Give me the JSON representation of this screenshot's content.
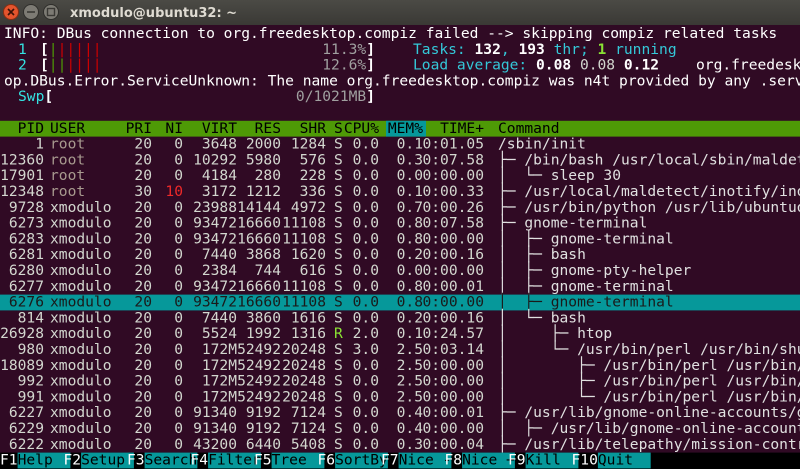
{
  "window": {
    "title": "xmodulo@ubuntu32: ~"
  },
  "top_lines": [
    [
      [
        {
          "text": "INFO: DBus connection to org.freedesktop.compiz failed --> skipping compiz related tasks",
          "color": "#ffffff"
        }
      ]
    ],
    [
      [
        {
          "text": "1",
          "color": "#34e2e2"
        }
      ],
      [
        {
          "text": "[",
          "color": "#ffffff",
          "bold": true
        },
        {
          "text": "|",
          "color": "#4e9a06"
        },
        {
          "text": "|||||",
          "color": "#cc0000"
        }
      ],
      [
        {
          "text": "11.3%",
          "color": "#a0a0a0"
        },
        {
          "text": "]",
          "color": "#ffffff",
          "bold": true
        }
      ],
      [
        {
          "text": "Tasks: ",
          "color": "#34c8d8"
        },
        {
          "text": "132",
          "color": "#ffffff",
          "bold": true
        },
        {
          "text": ", ",
          "color": "#34c8d8"
        },
        {
          "text": "193",
          "color": "#ffffff",
          "bold": true
        },
        {
          "text": " thr; ",
          "color": "#34c8d8"
        },
        {
          "text": "1",
          "color": "#8ae234",
          "bold": true
        },
        {
          "text": " running",
          "color": "#34c8d8"
        }
      ]
    ],
    [
      [
        {
          "text": "2",
          "color": "#34e2e2"
        }
      ],
      [
        {
          "text": "[",
          "color": "#ffffff",
          "bold": true
        },
        {
          "text": "||",
          "color": "#4e9a06"
        },
        {
          "text": "||||",
          "color": "#cc0000"
        }
      ],
      [
        {
          "text": "12.6%",
          "color": "#a0a0a0"
        },
        {
          "text": "]",
          "color": "#ffffff",
          "bold": true
        }
      ],
      [
        {
          "text": "Load average: ",
          "color": "#34c8d8"
        },
        {
          "text": "0.08 ",
          "color": "#ffffff",
          "bold": true
        },
        {
          "text": "0.08 ",
          "color": "#d3d7cf"
        },
        {
          "text": "0.12",
          "color": "#ffffff",
          "bold": true
        }
      ],
      [
        {
          "text": "org.freedesktop",
          "color": "#ffffff"
        }
      ]
    ],
    [
      [
        {
          "text": "op.DBus.Error.ServiceUnknown: The name org.freedesktop.compiz was n4t provided by any .service files",
          "color": "#ffffff"
        }
      ]
    ],
    [
      [
        {
          "text": "Swp",
          "color": "#34e2e2"
        },
        {
          "text": "[",
          "color": "#ffffff",
          "bold": true
        }
      ],
      [
        {
          "text": "0/1021MB",
          "color": "#a0a0a0"
        },
        {
          "text": "]",
          "color": "#ffffff",
          "bold": true
        }
      ]
    ]
  ],
  "table": {
    "header": [
      "PID",
      "USER",
      "PRI",
      "NI",
      "VIRT",
      "RES",
      "SHR",
      "S",
      "CPU%",
      "MEM%",
      "TIME+",
      "Command"
    ],
    "sort_column": 9,
    "highlight_row": 10,
    "rows": [
      [
        "1",
        "root",
        "20",
        "0",
        "3648",
        "2000",
        "1284",
        "S",
        "0.0",
        "0.1",
        "0:01.05",
        "/sbin/init"
      ],
      [
        "12360",
        "root",
        "20",
        "0",
        "10292",
        "5980",
        "576",
        "S",
        "0.0",
        "0.3",
        "0:07.58",
        "├─ /bin/bash /usr/local/sbin/maldet -m"
      ],
      [
        "17901",
        "root",
        "20",
        "0",
        "4184",
        "280",
        "228",
        "S",
        "0.0",
        "0.0",
        "0:00.00",
        "│  └─ sleep 30"
      ],
      [
        "12348",
        "root",
        "30",
        "10",
        "3172",
        "1212",
        "336",
        "S",
        "0.0",
        "0.1",
        "0:00.33",
        "├─ /usr/local/maldetect/inotify/inotif"
      ],
      [
        "9728",
        "xmodulo",
        "20",
        "0",
        "23988",
        "14144",
        "4972",
        "S",
        "0.0",
        "0.7",
        "0:00.26",
        "├─ /usr/bin/python /usr/lib/ubuntuone-"
      ],
      [
        "6273",
        "xmodulo",
        "20",
        "0",
        "93472",
        "16660",
        "11108",
        "S",
        "0.0",
        "0.8",
        "0:07.58",
        "├─ gnome-terminal"
      ],
      [
        "6283",
        "xmodulo",
        "20",
        "0",
        "93472",
        "16660",
        "11108",
        "S",
        "0.0",
        "0.8",
        "0:00.00",
        "│  ├─ gnome-terminal"
      ],
      [
        "6281",
        "xmodulo",
        "20",
        "0",
        "7440",
        "3868",
        "1620",
        "S",
        "0.0",
        "0.2",
        "0:00.16",
        "│  ├─ bash"
      ],
      [
        "6280",
        "xmodulo",
        "20",
        "0",
        "2384",
        "744",
        "616",
        "S",
        "0.0",
        "0.0",
        "0:00.00",
        "│  ├─ gnome-pty-helper"
      ],
      [
        "6277",
        "xmodulo",
        "20",
        "0",
        "93472",
        "16660",
        "11108",
        "S",
        "0.0",
        "0.8",
        "0:00.01",
        "│  ├─ gnome-terminal"
      ],
      [
        "6276",
        "xmodulo",
        "20",
        "0",
        "93472",
        "16660",
        "11108",
        "S",
        "0.0",
        "0.8",
        "0:00.00",
        "│  ├─ gnome-terminal"
      ],
      [
        "814",
        "xmodulo",
        "20",
        "0",
        "7440",
        "3860",
        "1616",
        "S",
        "0.0",
        "0.2",
        "0:00.16",
        "│  └─ bash"
      ],
      [
        "26928",
        "xmodulo",
        "20",
        "0",
        "5524",
        "1992",
        "1316",
        "R",
        "2.0",
        "0.1",
        "0:24.57",
        "│     ├─ htop"
      ],
      [
        "980",
        "xmodulo",
        "20",
        "0",
        "172M",
        "52492",
        "20248",
        "S",
        "3.0",
        "2.5",
        "0:03.14",
        "│     └─ /usr/bin/perl /usr/bin/shutte"
      ],
      [
        "18089",
        "xmodulo",
        "20",
        "0",
        "172M",
        "52492",
        "20248",
        "S",
        "0.0",
        "2.5",
        "0:00.00",
        "│        ├─ /usr/bin/perl /usr/bin/shu"
      ],
      [
        "992",
        "xmodulo",
        "20",
        "0",
        "172M",
        "52492",
        "20248",
        "S",
        "0.0",
        "2.5",
        "0:00.00",
        "│        ├─ /usr/bin/perl /usr/bin/shu"
      ],
      [
        "991",
        "xmodulo",
        "20",
        "0",
        "172M",
        "52492",
        "20248",
        "S",
        "0.0",
        "2.5",
        "0:00.00",
        "│        └─ /usr/bin/perl /usr/bin/shu"
      ],
      [
        "6227",
        "xmodulo",
        "20",
        "0",
        "91340",
        "9192",
        "7124",
        "S",
        "0.0",
        "0.4",
        "0:00.01",
        "├─ /usr/lib/gnome-online-accounts/goa-"
      ],
      [
        "6229",
        "xmodulo",
        "20",
        "0",
        "91340",
        "9192",
        "7124",
        "S",
        "0.0",
        "0.4",
        "0:00.00",
        "│  ├─ /usr/lib/gnome-online-accounts/g"
      ],
      [
        "6222",
        "xmodulo",
        "20",
        "0",
        "43200",
        "6440",
        "5408",
        "S",
        "0.0",
        "0.3",
        "0:00.04",
        "├─ /usr/lib/telepathy/mission-control-"
      ]
    ]
  },
  "footer": [
    [
      "F1",
      "Help"
    ],
    [
      "F2",
      "Setup"
    ],
    [
      "F3",
      "Search"
    ],
    [
      "F4",
      "Filter"
    ],
    [
      "F5",
      "Tree"
    ],
    [
      "F6",
      "SortBy"
    ],
    [
      "F7",
      "Nice -"
    ],
    [
      "F8",
      "Nice +"
    ],
    [
      "F9",
      "Kill"
    ],
    [
      "F10",
      "Quit"
    ]
  ]
}
